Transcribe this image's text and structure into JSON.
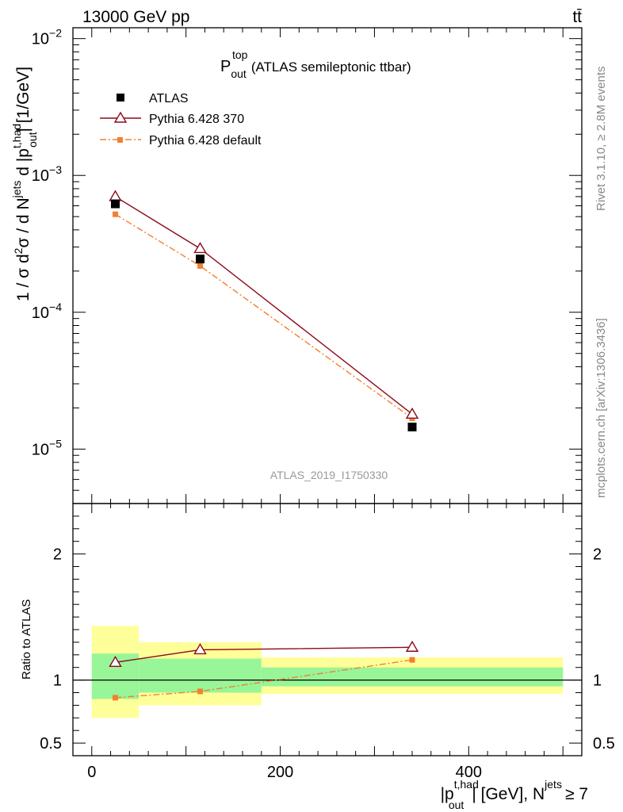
{
  "header": {
    "left": "13000 GeV pp",
    "right": "tt̄"
  },
  "side_labels": {
    "rivet": "Rivet 3.1.10, ≥ 2.8M events",
    "mcplots": "mcplots.cern.ch [arXiv:1306.3436]"
  },
  "chart_data": [
    {
      "type": "scatter",
      "title": "P_out^top (ATLAS semileptonic ttbar)",
      "title_main": "P",
      "title_sup": "top",
      "title_sub": "out",
      "title_rest": "(ATLAS semileptonic ttbar)",
      "analysis_label": "ATLAS_2019_I1750330",
      "ylabel": "1 / σ d²σ / d N^jets d |p_out^t,had| [1/GeV]",
      "yscale": "log",
      "ylim": [
        4e-06,
        0.012
      ],
      "y_tick_labels": [
        {
          "value": 1e-05,
          "base": "10",
          "exp": "−5"
        },
        {
          "value": 0.0001,
          "base": "10",
          "exp": "−4"
        },
        {
          "value": 0.001,
          "base": "10",
          "exp": "−3"
        },
        {
          "value": 0.01,
          "base": "10",
          "exp": "−2"
        }
      ],
      "xlim": [
        -20,
        520
      ],
      "legend_position": "top-left",
      "series": [
        {
          "name": "ATLAS",
          "marker": "square",
          "color": "#000000",
          "x": [
            25,
            115,
            340
          ],
          "y": [
            0.00062,
            0.000245,
            1.45e-05
          ]
        },
        {
          "name": "Pythia 6.428 370",
          "marker": "triangle-open",
          "color": "#8b0a1a",
          "line": "solid",
          "x": [
            25,
            115,
            340
          ],
          "y": [
            0.0007,
            0.000292,
            1.8e-05
          ]
        },
        {
          "name": "Pythia 6.428 default",
          "marker": "square-small",
          "color": "#f28030",
          "line": "dashdot",
          "x": [
            25,
            115,
            340
          ],
          "y": [
            0.00052,
            0.000218,
            1.68e-05
          ]
        }
      ]
    },
    {
      "type": "line",
      "ylabel": "Ratio to ATLAS",
      "ylim": [
        0.4,
        2.4
      ],
      "y_ticks": [
        0.5,
        1,
        2
      ],
      "y_tick_labels": [
        "0.5",
        "1",
        "2"
      ],
      "xlabel": "|p_out^t,had| [GeV], N^jets ≥ 7",
      "xlabel_parts": {
        "p": "|p",
        "sup": "t,had",
        "sub": "out",
        "mid": "| [GeV], N",
        "jets": "jets",
        "tail": "≥ 7"
      },
      "xlim": [
        -20,
        520
      ],
      "x_ticks": [
        0,
        200,
        400
      ],
      "x_tick_labels": [
        "0",
        "200",
        "400"
      ],
      "reference": 1,
      "bands": [
        {
          "x0": 0,
          "x1": 50,
          "yellow": [
            0.7,
            1.43
          ],
          "green": [
            0.85,
            1.21
          ]
        },
        {
          "x0": 50,
          "x1": 180,
          "yellow": [
            0.8,
            1.3
          ],
          "green": [
            0.9,
            1.17
          ]
        },
        {
          "x0": 180,
          "x1": 500,
          "yellow": [
            0.89,
            1.18
          ],
          "green": [
            0.95,
            1.1
          ]
        }
      ],
      "series": [
        {
          "name": "Pythia 6.428 370",
          "color": "#8b0a1a",
          "marker": "triangle-open",
          "line": "solid",
          "x": [
            25,
            115,
            340
          ],
          "y": [
            1.14,
            1.24,
            1.26
          ]
        },
        {
          "name": "Pythia 6.428 default",
          "color": "#f28030",
          "marker": "square-small",
          "line": "dashdot",
          "x": [
            25,
            115,
            340
          ],
          "y": [
            0.86,
            0.91,
            1.16
          ]
        }
      ]
    }
  ]
}
